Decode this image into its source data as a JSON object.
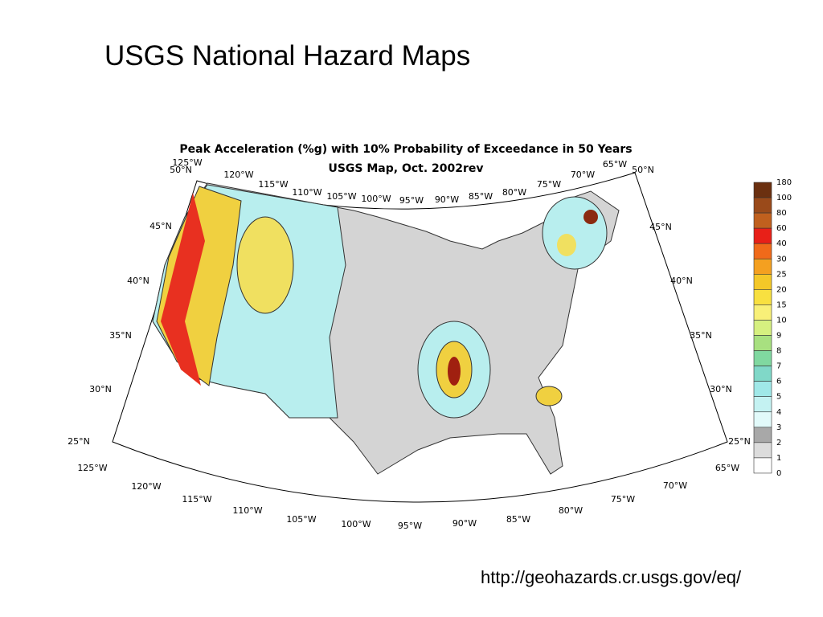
{
  "slide": {
    "title": "USGS National Hazard Maps",
    "map_title": [
      "Peak Acceleration (%g) with 10% Probability of Exceedance in 50 Years",
      "USGS Map, Oct. 2002rev"
    ],
    "top_longitudes": [
      "125°W",
      "120°W",
      "115°W",
      "110°W",
      "105°W",
      "100°W",
      "95°W",
      "90°W",
      "85°W",
      "80°W",
      "75°W",
      "70°W",
      "65°W"
    ],
    "bottom_longitudes": [
      "125°W",
      "120°W",
      "115°W",
      "110°W",
      "105°W",
      "100°W",
      "95°W",
      "90°W",
      "85°W",
      "80°W",
      "75°W",
      "70°W",
      "65°W"
    ],
    "left_latitudes": [
      "50°N",
      "45°N",
      "40°N",
      "35°N",
      "30°N",
      "25°N"
    ],
    "right_latitudes": [
      "50°N",
      "45°N",
      "40°N",
      "35°N",
      "30°N",
      "25°N"
    ],
    "legend_labels": [
      180,
      100,
      80,
      60,
      40,
      30,
      25,
      20,
      15,
      10,
      9,
      8,
      7,
      6,
      5,
      4,
      3,
      2,
      1,
      0
    ],
    "url": "http://geohazards.cr.usgs.gov/eq/"
  }
}
